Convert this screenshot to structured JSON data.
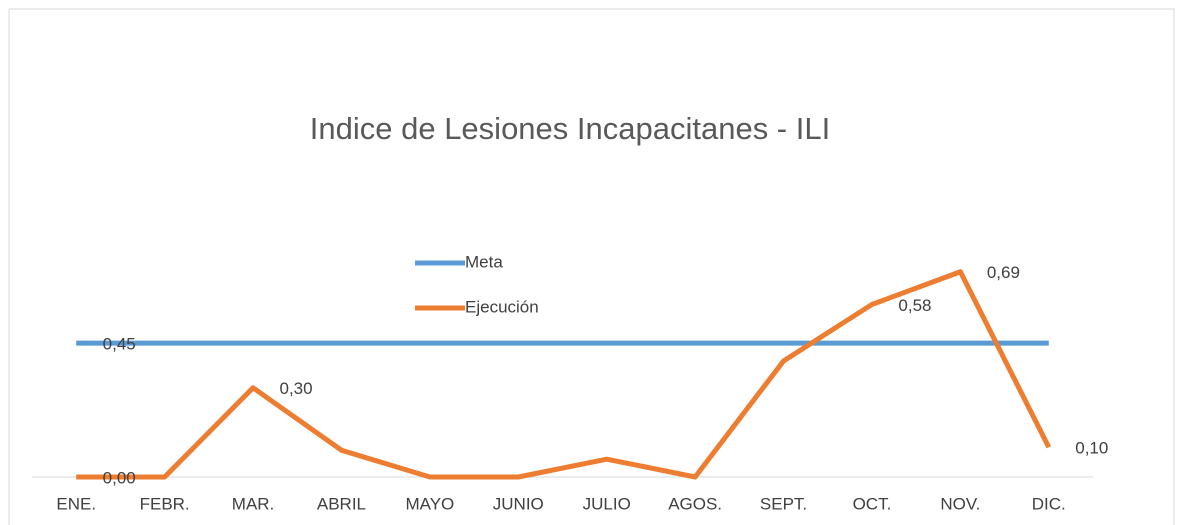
{
  "chart_data": {
    "type": "line",
    "title": "Indice de Lesiones Incapacitanes - ILI",
    "categories": [
      "ENE.",
      "FEBR.",
      "MAR.",
      "ABRIL",
      "MAYO",
      "JUNIO",
      "JULIO",
      "AGOS.",
      "SEPT.",
      "OCT.",
      "NOV.",
      "DIC."
    ],
    "series": [
      {
        "name": "Meta",
        "color": "#5b9bd5",
        "values": [
          0.45,
          0.45,
          0.45,
          0.45,
          0.45,
          0.45,
          0.45,
          0.45,
          0.45,
          0.45,
          0.45,
          0.45
        ],
        "value_labels": [
          "0,45",
          null,
          null,
          null,
          null,
          null,
          null,
          null,
          null,
          null,
          null,
          null
        ]
      },
      {
        "name": "Ejecución",
        "color": "#ed7d31",
        "values": [
          0,
          0,
          0.3,
          0.09,
          0,
          0,
          0.06,
          0,
          0.39,
          0.58,
          0.69,
          0.1
        ],
        "value_labels": [
          "0,00",
          null,
          "0,30",
          null,
          null,
          null,
          null,
          null,
          null,
          "0,58",
          "0,69",
          "0,10"
        ]
      }
    ],
    "ylim": [
      0,
      0.8
    ],
    "legend": "center"
  }
}
